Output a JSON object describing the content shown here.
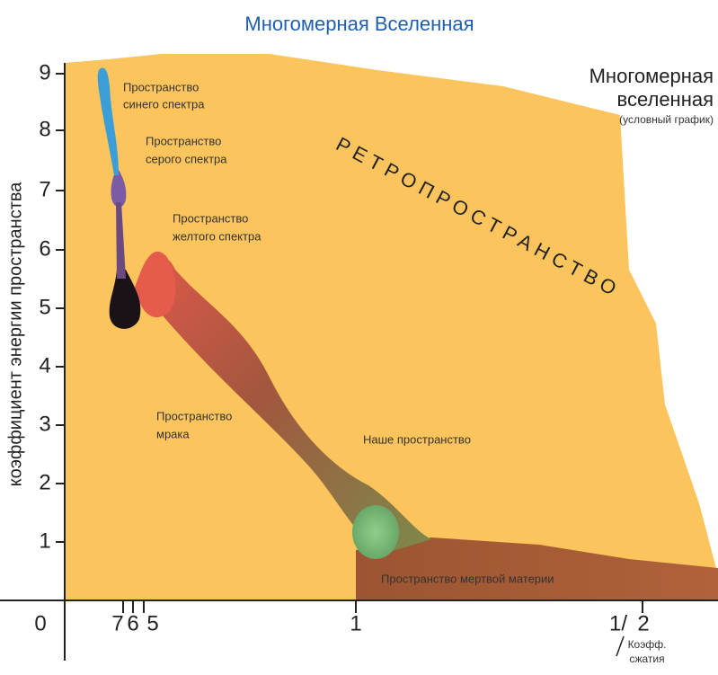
{
  "title": "Многомерная Вселенная",
  "corner_title": {
    "lines": [
      "Многомерная",
      "вселенная"
    ],
    "note": "(условный график)"
  },
  "y_axis": {
    "label": "коэффициент энергии пространства",
    "ticks": [
      "1",
      "2",
      "3",
      "4",
      "5",
      "6",
      "7",
      "8",
      "9"
    ]
  },
  "x_axis": {
    "ticks": [
      "0",
      "7",
      "6",
      "5",
      "1",
      "1/",
      "2"
    ],
    "label": [
      "Коэфф.",
      "сжатия"
    ]
  },
  "retro": "РЕТРОПРОСТРАНСТВО",
  "regions": [
    {
      "lines": [
        "Пространство",
        "синего спектра"
      ]
    },
    {
      "lines": [
        "Пространство",
        "серого спектра"
      ]
    },
    {
      "lines": [
        "Пространство",
        "желтого спектра"
      ]
    },
    {
      "lines": [
        "Пространство",
        "мрака"
      ]
    },
    {
      "lines": [
        "Наше пространство"
      ]
    },
    {
      "lines": [
        "Пространство мертвой материи"
      ]
    }
  ]
}
